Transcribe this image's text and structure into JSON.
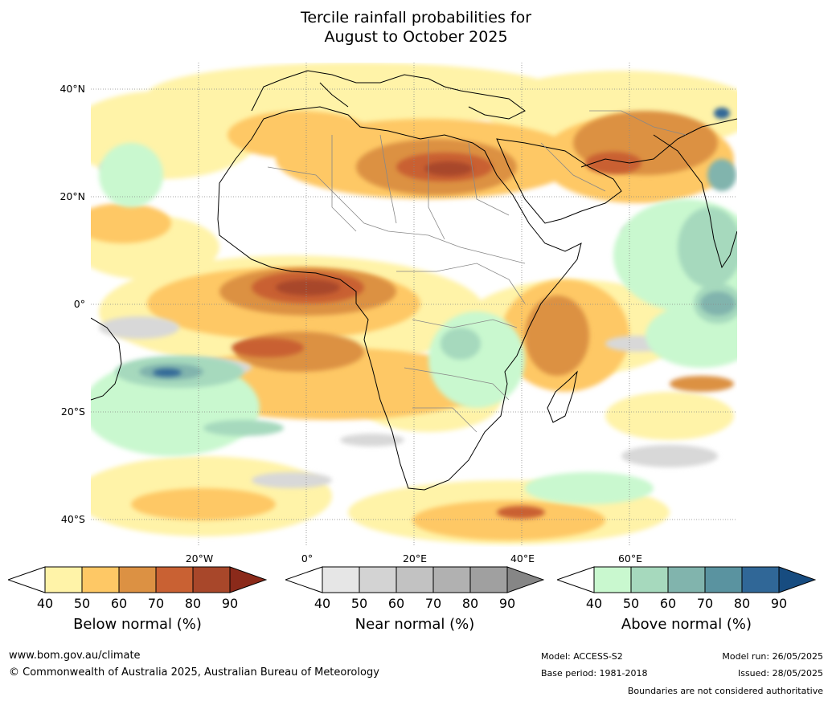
{
  "title": {
    "line1": "Tercile rainfall probabilities for",
    "line2": "August to October 2025"
  },
  "map": {
    "lat_labels": [
      "40°N",
      "20°N",
      "0°",
      "20°S",
      "40°S"
    ],
    "lon_labels": [
      "20°W",
      "0°",
      "20°E",
      "40°E",
      "60°E"
    ],
    "extent": {
      "lon_min": -40,
      "lon_max": 80,
      "lat_min": -45,
      "lat_max": 45
    },
    "graticule": "dotted"
  },
  "colorbars": [
    {
      "title": "Below normal (%)",
      "ticks": [
        "40",
        "50",
        "60",
        "70",
        "80",
        "90"
      ],
      "colors": [
        "#fff3a8",
        "#fec865",
        "#dc9143",
        "#c96133",
        "#a8472a",
        "#8b2a1a"
      ]
    },
    {
      "title": "Near normal (%)",
      "ticks": [
        "40",
        "50",
        "60",
        "70",
        "80",
        "90"
      ],
      "colors": [
        "#e6e6e6",
        "#d3d3d3",
        "#c2c2c2",
        "#b1b1b1",
        "#a0a0a0",
        "#868686"
      ]
    },
    {
      "title": "Above normal (%)",
      "ticks": [
        "40",
        "50",
        "60",
        "70",
        "80",
        "90"
      ],
      "colors": [
        "#c9f8cf",
        "#a6d9bd",
        "#81b4ad",
        "#5a93a0",
        "#306797",
        "#174c80"
      ]
    }
  ],
  "footer": {
    "url": "www.bom.gov.au/climate",
    "copyright": "© Commonwealth of Australia 2025, Australian Bureau of Meteorology",
    "model": "Model: ACCESS-S2",
    "base_period": "Base period: 1981-2018",
    "model_run": "Model run: 26/05/2025",
    "issued": "Issued: 28/05/2025",
    "disclaimer": "Boundaries are not considered authoritative"
  }
}
